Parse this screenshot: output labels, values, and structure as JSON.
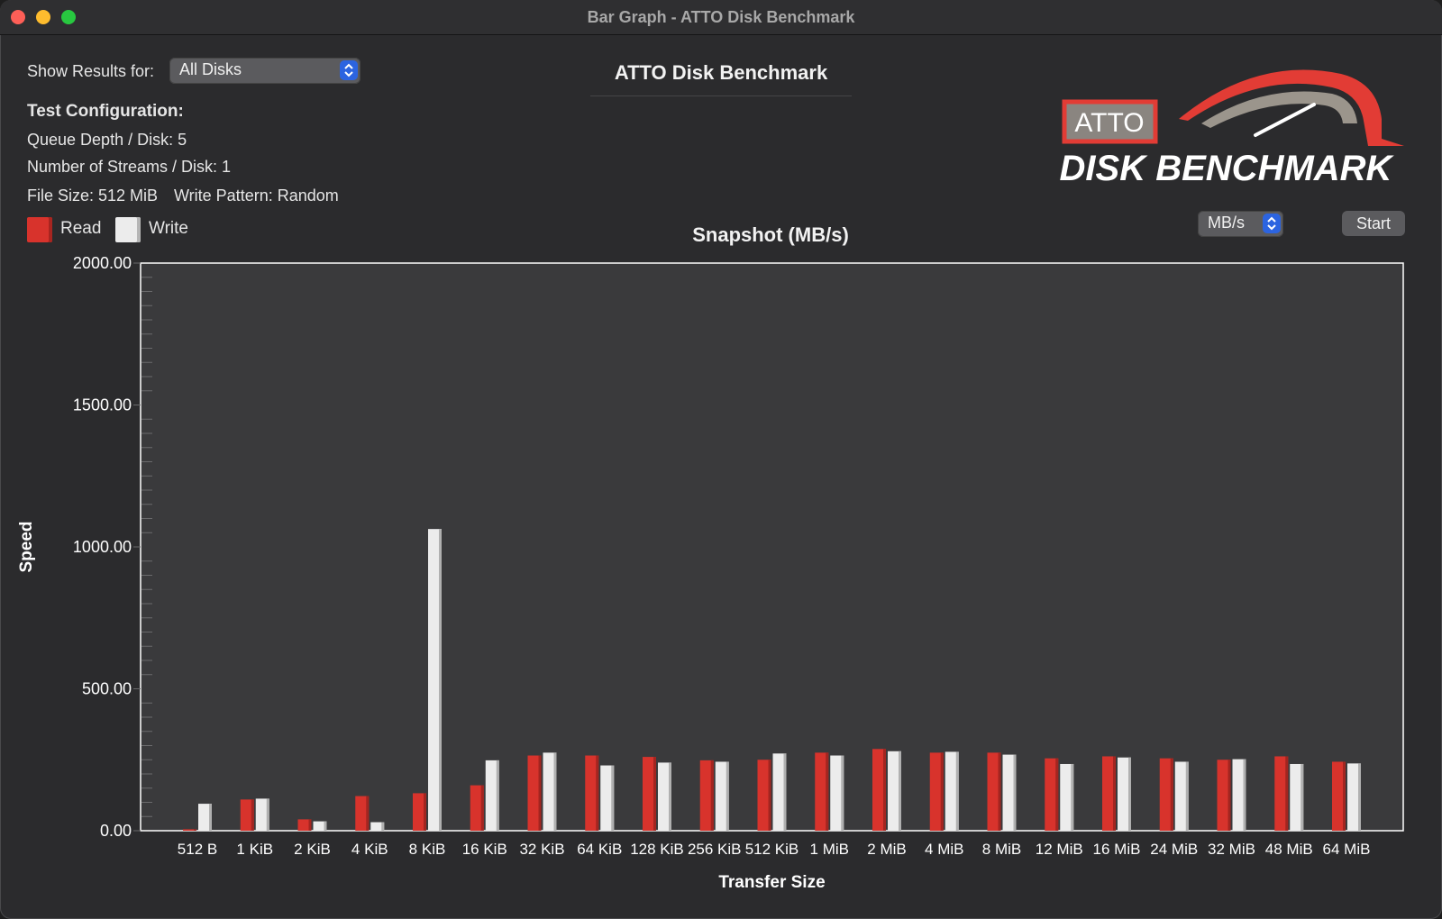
{
  "window": {
    "title": "Bar Graph - ATTO Disk Benchmark"
  },
  "controls": {
    "show_results_label": "Show Results for:",
    "disk_select": "All Disks",
    "unit_select": "MB/s",
    "start_button": "Start"
  },
  "app_heading": "ATTO Disk Benchmark",
  "logo": {
    "brand": "ATTO",
    "product": "DISK BENCHMARK",
    "brand_red": "#e23c35"
  },
  "config": {
    "heading": "Test Configuration:",
    "queue_depth": "Queue Depth / Disk: 5",
    "streams": "Number of Streams / Disk: 1",
    "file_size": "File Size: 512 MiB",
    "write_pattern": "Write Pattern: Random"
  },
  "legend": {
    "read": "Read",
    "write": "Write"
  },
  "colors": {
    "read": "#d8332c",
    "write": "#ececec",
    "plot_bg": "#3a3a3c"
  },
  "chart_data": {
    "type": "bar",
    "title": "Snapshot (MB/s)",
    "xlabel": "Transfer Size",
    "ylabel": "Speed",
    "ylim": [
      0,
      2000
    ],
    "yticks": [
      "0.00",
      "500.00",
      "1000.00",
      "1500.00",
      "2000.00"
    ],
    "ytick_values": [
      0,
      500,
      1000,
      1500,
      2000
    ],
    "categories": [
      "512 B",
      "1 KiB",
      "2 KiB",
      "4 KiB",
      "8 KiB",
      "16 KiB",
      "32 KiB",
      "64 KiB",
      "128 KiB",
      "256 KiB",
      "512 KiB",
      "1 MiB",
      "2 MiB",
      "4 MiB",
      "8 MiB",
      "12 MiB",
      "16 MiB",
      "24 MiB",
      "32 MiB",
      "48 MiB",
      "64 MiB"
    ],
    "series": [
      {
        "name": "Read",
        "values": [
          5,
          110,
          40,
          122,
          132,
          160,
          265,
          265,
          260,
          248,
          250,
          275,
          288,
          275,
          275,
          255,
          262,
          255,
          250,
          262,
          243
        ]
      },
      {
        "name": "Write",
        "values": [
          95,
          113,
          33,
          30,
          1063,
          248,
          275,
          230,
          240,
          243,
          272,
          265,
          280,
          278,
          268,
          235,
          258,
          243,
          252,
          235,
          237
        ]
      }
    ]
  }
}
